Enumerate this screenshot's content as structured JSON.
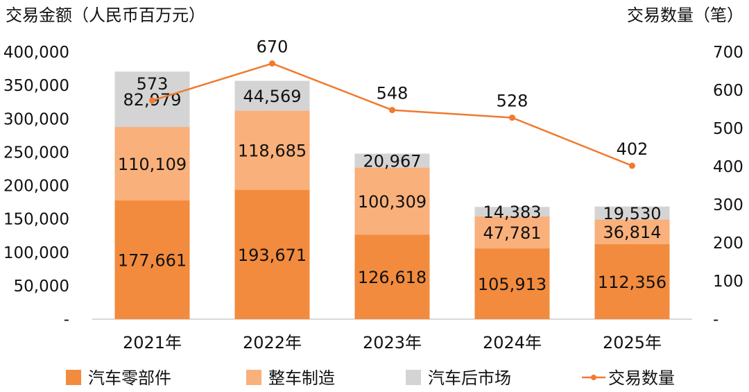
{
  "chart_data": {
    "type": "bar",
    "stacked": true,
    "categories": [
      "2021年",
      "2022年",
      "2023年",
      "2024年",
      "2025年"
    ],
    "y_left": {
      "title": "交易金额（人民币百万元）",
      "ylim": [
        0,
        400000
      ],
      "ticks": [
        "-",
        "50,000",
        "100,000",
        "150,000",
        "200,000",
        "250,000",
        "300,000",
        "350,000",
        "400,000"
      ]
    },
    "y_right": {
      "title": "交易数量（笔）",
      "ylim": [
        0,
        700
      ],
      "ticks": [
        "-",
        "100",
        "200",
        "300",
        "400",
        "500",
        "600",
        "700"
      ]
    },
    "series": [
      {
        "name": "汽车零部件",
        "kind": "bar",
        "axis": "left",
        "color": "#f28b3e",
        "values": [
          177661,
          193671,
          126618,
          105913,
          112356
        ],
        "labels": [
          "177,661",
          "193,671",
          "126,618",
          "105,913",
          "112,356"
        ]
      },
      {
        "name": "整车制造",
        "kind": "bar",
        "axis": "left",
        "color": "#f9b07b",
        "values": [
          110109,
          118685,
          100309,
          47781,
          36814
        ],
        "labels": [
          "110,109",
          "118,685",
          "100,309",
          "47,781",
          "36,814"
        ]
      },
      {
        "name": "汽车后市场",
        "kind": "bar",
        "axis": "left",
        "color": "#d4d4d4",
        "values": [
          82979,
          44569,
          20967,
          14383,
          19530
        ],
        "labels": [
          "82,979",
          "44,569",
          "20,967",
          "14,383",
          "19,530"
        ]
      },
      {
        "name": "交易数量",
        "kind": "line",
        "axis": "right",
        "color": "#f07a2e",
        "values": [
          573,
          670,
          548,
          528,
          402
        ],
        "labels": [
          "573",
          "670",
          "548",
          "528",
          "402"
        ]
      }
    ],
    "legend": {
      "placement": "bottom"
    },
    "grid": false
  }
}
